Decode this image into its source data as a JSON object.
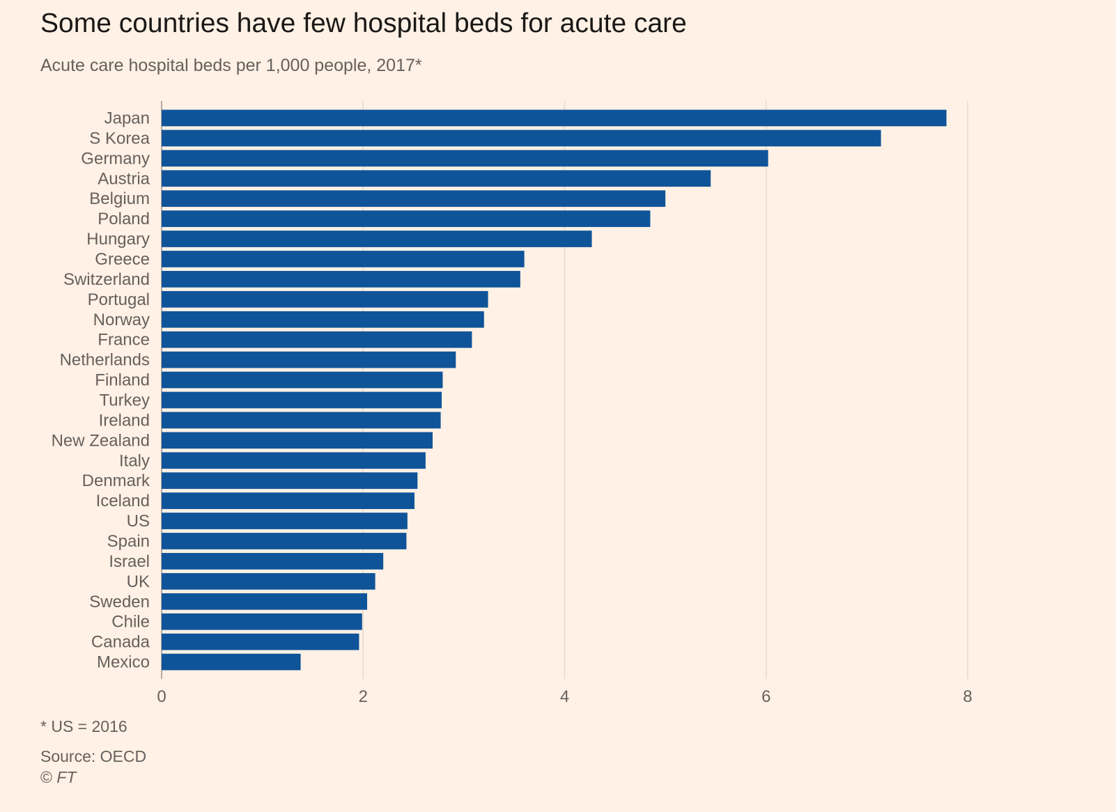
{
  "chart_data": {
    "type": "bar",
    "orientation": "horizontal",
    "title": "Some countries have few hospital beds for acute care",
    "subtitle": "Acute care hospital beds per 1,000 people, 2017*",
    "categories": [
      "Japan",
      "S Korea",
      "Germany",
      "Austria",
      "Belgium",
      "Poland",
      "Hungary",
      "Greece",
      "Switzerland",
      "Portugal",
      "Norway",
      "France",
      "Netherlands",
      "Finland",
      "Turkey",
      "Ireland",
      "New Zealand",
      "Italy",
      "Denmark",
      "Iceland",
      "US",
      "Spain",
      "Israel",
      "UK",
      "Sweden",
      "Chile",
      "Canada",
      "Mexico"
    ],
    "values": [
      7.79,
      7.14,
      6.02,
      5.45,
      5.0,
      4.85,
      4.27,
      3.6,
      3.56,
      3.24,
      3.2,
      3.08,
      2.92,
      2.79,
      2.78,
      2.77,
      2.69,
      2.62,
      2.54,
      2.51,
      2.44,
      2.43,
      2.2,
      2.12,
      2.04,
      1.99,
      1.96,
      1.38
    ],
    "xticks": [
      "0",
      "2",
      "4",
      "6",
      "8"
    ],
    "xlim": [
      0,
      8
    ],
    "grid": true,
    "bar_color": "#0f5499",
    "grid_color": "#e6d9ce"
  },
  "footnote": "* US = 2016",
  "source": "Source: OECD",
  "copyright": {
    "symbol": "©",
    "name": "FT"
  }
}
